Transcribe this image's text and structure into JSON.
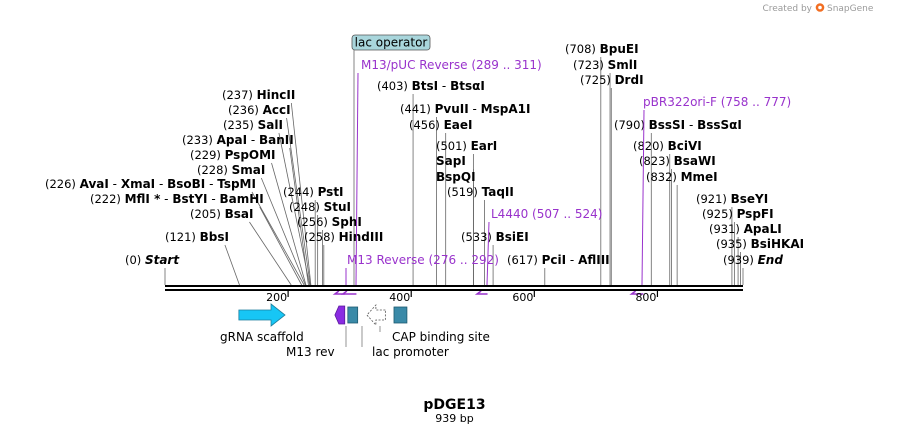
{
  "header": {
    "credit": "Created by",
    "brand": "SnapGene"
  },
  "plasmid": {
    "name": "pDGE13",
    "size_label": "939 bp",
    "length": 939
  },
  "axis_ticks": [
    {
      "pos": 200,
      "label": "200"
    },
    {
      "pos": 400,
      "label": "400"
    },
    {
      "pos": 600,
      "label": "600"
    },
    {
      "pos": 800,
      "label": "800"
    }
  ],
  "sites": [
    {
      "pos": 0,
      "label": "(0)",
      "names": [
        {
          "t": "Start",
          "s": "ital"
        }
      ]
    },
    {
      "pos": 121,
      "label": "(121)",
      "names": [
        {
          "t": "BbsI",
          "s": "b"
        }
      ]
    },
    {
      "pos": 205,
      "label": "(205)",
      "names": [
        {
          "t": "BsaI",
          "s": "b"
        }
      ]
    },
    {
      "pos": 222,
      "label": "(222)",
      "names": [
        {
          "t": "MflI *",
          "s": "b"
        },
        {
          "t": " - ",
          "s": "n"
        },
        {
          "t": "BstYI",
          "s": "b"
        },
        {
          "t": " - ",
          "s": "n"
        },
        {
          "t": "BamHI",
          "s": "b"
        }
      ]
    },
    {
      "pos": 226,
      "label": "(226)",
      "names": [
        {
          "t": "AvaI",
          "s": "b"
        },
        {
          "t": " - ",
          "s": "n"
        },
        {
          "t": "XmaI",
          "s": "b"
        },
        {
          "t": " - ",
          "s": "n"
        },
        {
          "t": "BsoBI",
          "s": "b"
        },
        {
          "t": " - ",
          "s": "n"
        },
        {
          "t": "TspMI",
          "s": "b"
        }
      ]
    },
    {
      "pos": 228,
      "label": "(228)",
      "names": [
        {
          "t": "SmaI",
          "s": "b"
        }
      ]
    },
    {
      "pos": 229,
      "label": "(229)",
      "names": [
        {
          "t": "PspOMI",
          "s": "b"
        }
      ]
    },
    {
      "pos": 233,
      "label": "(233)",
      "names": [
        {
          "t": "ApaI",
          "s": "b"
        },
        {
          "t": " - ",
          "s": "n"
        },
        {
          "t": "BanII",
          "s": "b"
        }
      ]
    },
    {
      "pos": 235,
      "label": "(235)",
      "names": [
        {
          "t": "SalI",
          "s": "b"
        }
      ]
    },
    {
      "pos": 236,
      "label": "(236)",
      "names": [
        {
          "t": "AccI",
          "s": "b"
        }
      ]
    },
    {
      "pos": 237,
      "label": "(237)",
      "names": [
        {
          "t": "HincII",
          "s": "b"
        }
      ]
    },
    {
      "pos": 244,
      "label": "(244)",
      "names": [
        {
          "t": "PstI",
          "s": "b"
        }
      ]
    },
    {
      "pos": 248,
      "label": "(248)",
      "names": [
        {
          "t": "StuI",
          "s": "b"
        }
      ]
    },
    {
      "pos": 256,
      "label": "(256)",
      "names": [
        {
          "t": "SphI",
          "s": "b"
        }
      ]
    },
    {
      "pos": 258,
      "label": "(258)",
      "names": [
        {
          "t": "HindIII",
          "s": "b"
        }
      ]
    },
    {
      "pos": 403,
      "label": "(403)",
      "names": [
        {
          "t": "BtsI",
          "s": "b"
        },
        {
          "t": " - ",
          "s": "n"
        },
        {
          "t": "BtsαI",
          "s": "b"
        }
      ]
    },
    {
      "pos": 441,
      "label": "(441)",
      "names": [
        {
          "t": "PvuII",
          "s": "b"
        },
        {
          "t": " - ",
          "s": "n"
        },
        {
          "t": "MspA1I",
          "s": "b"
        }
      ]
    },
    {
      "pos": 456,
      "label": "(456)",
      "names": [
        {
          "t": "EaeI",
          "s": "b"
        }
      ]
    },
    {
      "pos": 501,
      "label": "(501)",
      "names": [
        {
          "t": "EarI",
          "s": "b"
        }
      ]
    },
    {
      "pos": 501,
      "label": "",
      "names": [
        {
          "t": "SapI",
          "s": "b"
        }
      ]
    },
    {
      "pos": 501,
      "label": "",
      "names": [
        {
          "t": "BspQI",
          "s": "b"
        }
      ]
    },
    {
      "pos": 519,
      "label": "(519)",
      "names": [
        {
          "t": "TaqII",
          "s": "b"
        }
      ]
    },
    {
      "pos": 533,
      "label": "(533)",
      "names": [
        {
          "t": "BsiEI",
          "s": "b"
        }
      ]
    },
    {
      "pos": 617,
      "label": "(617)",
      "names": [
        {
          "t": "PciI",
          "s": "b"
        },
        {
          "t": " - ",
          "s": "n"
        },
        {
          "t": "AflIII",
          "s": "b"
        }
      ]
    },
    {
      "pos": 708,
      "label": "(708)",
      "names": [
        {
          "t": "BpuEI",
          "s": "b"
        }
      ]
    },
    {
      "pos": 723,
      "label": "(723)",
      "names": [
        {
          "t": "SmlI",
          "s": "b"
        }
      ]
    },
    {
      "pos": 725,
      "label": "(725)",
      "names": [
        {
          "t": "DrdI",
          "s": "b"
        }
      ]
    },
    {
      "pos": 790,
      "label": "(790)",
      "names": [
        {
          "t": "BssSI",
          "s": "b"
        },
        {
          "t": " - ",
          "s": "n"
        },
        {
          "t": "BssSαI",
          "s": "b"
        }
      ]
    },
    {
      "pos": 820,
      "label": "(820)",
      "names": [
        {
          "t": "BciVI",
          "s": "b"
        }
      ]
    },
    {
      "pos": 823,
      "label": "(823)",
      "names": [
        {
          "t": "BsaWI",
          "s": "b"
        }
      ]
    },
    {
      "pos": 832,
      "label": "(832)",
      "names": [
        {
          "t": "MmeI",
          "s": "b"
        }
      ]
    },
    {
      "pos": 921,
      "label": "(921)",
      "names": [
        {
          "t": "BseYI",
          "s": "b"
        }
      ]
    },
    {
      "pos": 925,
      "label": "(925)",
      "names": [
        {
          "t": "PspFI",
          "s": "b"
        }
      ]
    },
    {
      "pos": 931,
      "label": "(931)",
      "names": [
        {
          "t": "ApaLI",
          "s": "b"
        }
      ]
    },
    {
      "pos": 935,
      "label": "(935)",
      "names": [
        {
          "t": "BsiHKAI",
          "s": "b"
        }
      ]
    },
    {
      "pos": 939,
      "label": "(939)",
      "names": [
        {
          "t": "End",
          "s": "ital"
        }
      ]
    }
  ],
  "primers": [
    {
      "name": "M13/pUC Reverse",
      "range": "(289 .. 311)",
      "start": 289,
      "end": 311,
      "strand": "reverse"
    },
    {
      "name": "M13 Reverse",
      "range": "(276 .. 292)",
      "start": 276,
      "end": 292,
      "strand": "reverse"
    },
    {
      "name": "L4440",
      "range": "(507 .. 524)",
      "start": 507,
      "end": 524,
      "strand": "reverse"
    },
    {
      "name": "pBR322ori-F",
      "range": "(758 .. 777)",
      "start": 758,
      "end": 777,
      "strand": "reverse"
    }
  ],
  "features": [
    {
      "name": "gRNA scaffold",
      "start": 120,
      "end": 195,
      "kind": "arrow-right",
      "color": "#17c6f5"
    },
    {
      "name": "M13 rev",
      "start": 276,
      "end": 292,
      "kind": "arrow-left",
      "color": "#8a2be2"
    },
    {
      "name": "lac operator",
      "start": 297,
      "end": 313,
      "kind": "box",
      "color": "#3a8aa8"
    },
    {
      "name": "lac promoter",
      "start": 328,
      "end": 358,
      "kind": "arrow-left-dashed",
      "color": "#ffffff"
    },
    {
      "name": "CAP binding site",
      "start": 372,
      "end": 393,
      "kind": "box",
      "color": "#3a8aa8"
    }
  ],
  "colors": {
    "primer": "#9933cc",
    "operator_tag": "#a9d6dc",
    "backbone": "#000000"
  }
}
